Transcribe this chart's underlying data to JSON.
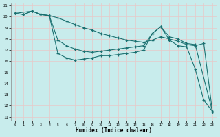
{
  "background_color": "#c8ecec",
  "grid_color": "#d8eded",
  "line_color": "#1a7070",
  "xlabel": "Humidex (Indice chaleur)",
  "xlim": [
    -0.5,
    23.5
  ],
  "ylim": [
    10.7,
    21.2
  ],
  "yticks": [
    11,
    12,
    13,
    14,
    15,
    16,
    17,
    18,
    19,
    20,
    21
  ],
  "xticks": [
    0,
    1,
    2,
    3,
    4,
    5,
    6,
    7,
    8,
    9,
    10,
    11,
    12,
    13,
    14,
    15,
    16,
    17,
    18,
    19,
    20,
    21,
    22,
    23
  ],
  "line1_x": [
    0,
    1,
    2,
    3,
    4,
    5,
    6,
    7,
    8,
    9,
    10,
    11,
    12,
    13,
    14,
    15,
    16,
    17,
    18,
    19,
    20,
    21,
    22,
    23
  ],
  "line1_y": [
    20.3,
    20.2,
    20.5,
    20.2,
    20.1,
    16.7,
    16.3,
    16.1,
    16.2,
    16.3,
    16.5,
    16.5,
    16.6,
    16.7,
    16.8,
    17.0,
    18.5,
    19.1,
    17.9,
    17.4,
    17.3,
    15.3,
    12.5,
    11.5
  ],
  "line2_x": [
    0,
    2,
    3,
    4,
    5,
    6,
    7,
    8,
    9,
    10,
    11,
    12,
    13,
    14,
    15,
    16,
    17,
    18,
    19,
    20,
    21,
    23
  ],
  "line2_y": [
    20.3,
    20.5,
    20.2,
    20.1,
    17.9,
    17.4,
    17.1,
    16.9,
    16.8,
    16.9,
    17.0,
    17.1,
    17.2,
    17.3,
    17.4,
    18.5,
    19.1,
    18.2,
    18.0,
    17.6,
    17.5,
    11.5
  ],
  "line3_x": [
    0,
    1,
    2,
    3,
    4,
    5,
    6,
    7,
    8,
    9,
    10,
    11,
    12,
    13,
    14,
    15,
    16,
    17,
    18,
    19,
    20,
    21,
    22,
    23
  ],
  "line3_y": [
    20.3,
    20.2,
    20.5,
    20.2,
    20.1,
    19.9,
    19.6,
    19.3,
    19.0,
    18.8,
    18.5,
    18.3,
    18.1,
    17.9,
    17.8,
    17.7,
    17.9,
    18.2,
    18.0,
    17.8,
    17.5,
    17.4,
    17.6,
    11.5
  ]
}
